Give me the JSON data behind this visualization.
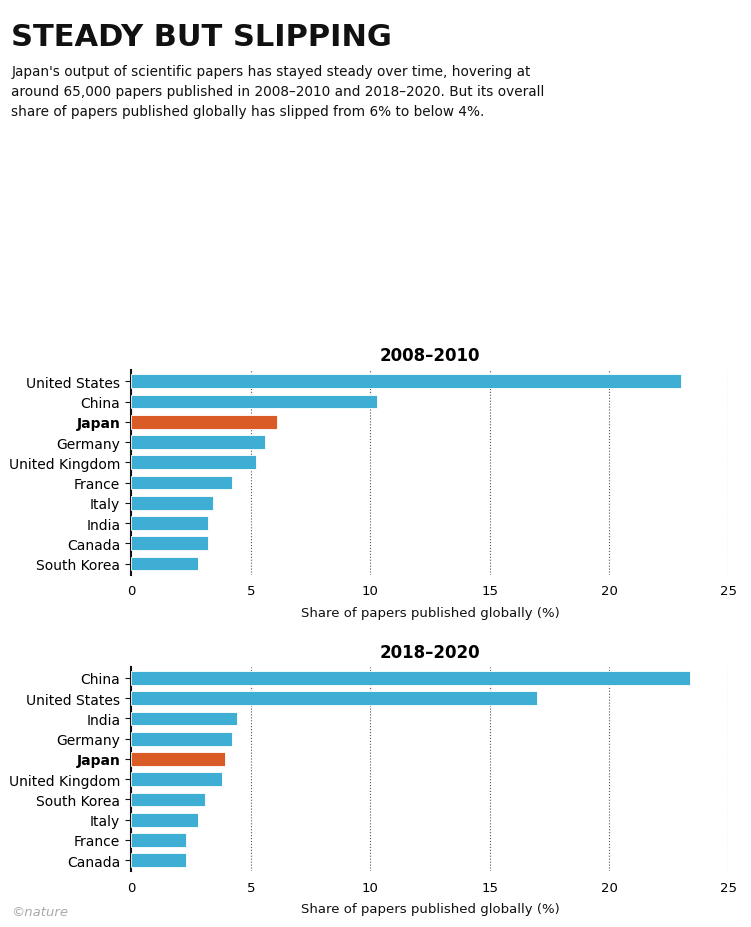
{
  "title": "STEADY BUT SLIPPING",
  "subtitle": "Japan's output of scientific papers has stayed steady over time, hovering at\naround 65,000 papers published in 2008–2010 and 2018–2020. But its overall\nshare of papers published globally has slipped from 6% to below 4%.",
  "chart1_title": "2008–2010",
  "chart2_title": "2018–2020",
  "xlabel": "Share of papers published globally (%)",
  "chart1": {
    "countries": [
      "United States",
      "China",
      "Japan",
      "Germany",
      "United Kingdom",
      "France",
      "Italy",
      "India",
      "Canada",
      "South Korea"
    ],
    "values": [
      23.0,
      10.3,
      6.1,
      5.6,
      5.2,
      4.2,
      3.4,
      3.2,
      3.2,
      2.8
    ],
    "colors": [
      "#3EAED4",
      "#3EAED4",
      "#D95B25",
      "#3EAED4",
      "#3EAED4",
      "#3EAED4",
      "#3EAED4",
      "#3EAED4",
      "#3EAED4",
      "#3EAED4"
    ],
    "japan_index": 2
  },
  "chart2": {
    "countries": [
      "China",
      "United States",
      "India",
      "Germany",
      "Japan",
      "United Kingdom",
      "South Korea",
      "Italy",
      "France",
      "Canada"
    ],
    "values": [
      23.4,
      17.0,
      4.4,
      4.2,
      3.9,
      3.8,
      3.1,
      2.8,
      2.3,
      2.3
    ],
    "colors": [
      "#3EAED4",
      "#3EAED4",
      "#3EAED4",
      "#3EAED4",
      "#D95B25",
      "#3EAED4",
      "#3EAED4",
      "#3EAED4",
      "#3EAED4",
      "#3EAED4"
    ],
    "japan_index": 4
  },
  "xlim": [
    0,
    25
  ],
  "xticks": [
    0,
    5,
    10,
    15,
    20,
    25
  ],
  "bar_color_blue": "#3EAED4",
  "bar_color_orange": "#D95B25",
  "background_color": "#ffffff",
  "bar_height": 0.68,
  "title_fontsize": 22,
  "subtitle_fontsize": 9.8,
  "chart_title_fontsize": 12,
  "tick_fontsize": 9.5,
  "xlabel_fontsize": 9.5,
  "copyright_text": "©nature"
}
